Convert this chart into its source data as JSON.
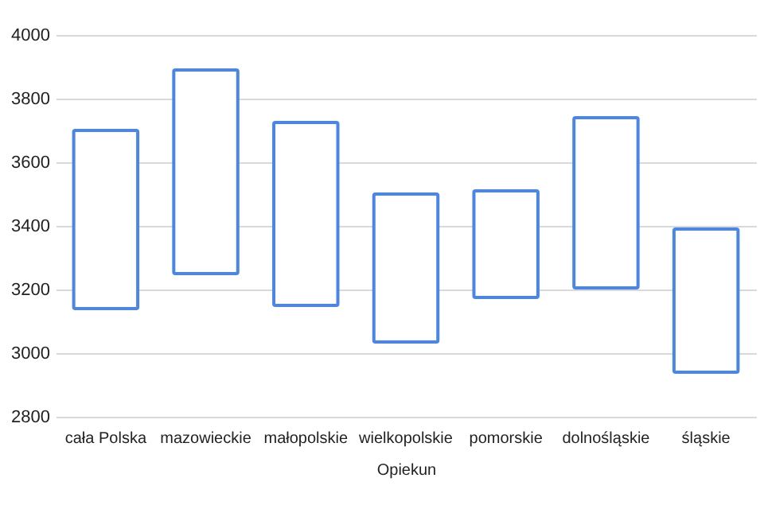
{
  "chart_data": {
    "type": "bar",
    "xlabel": "Opiekun",
    "categories": [
      "cała Polska",
      "mazowieckie",
      "małopolskie",
      "wielkopolskie",
      "pomorskie",
      "dolnośląskie",
      "śląskie"
    ],
    "base": [
      3140,
      3250,
      3150,
      3035,
      3175,
      3205,
      2940
    ],
    "values": [
      560,
      640,
      575,
      465,
      335,
      535,
      450
    ],
    "color": "#4a86e8",
    "ylim": [
      2800,
      4000
    ],
    "yticks": [
      2800,
      3000,
      3200,
      3400,
      3600,
      3800,
      4000
    ],
    "grid": "y"
  }
}
